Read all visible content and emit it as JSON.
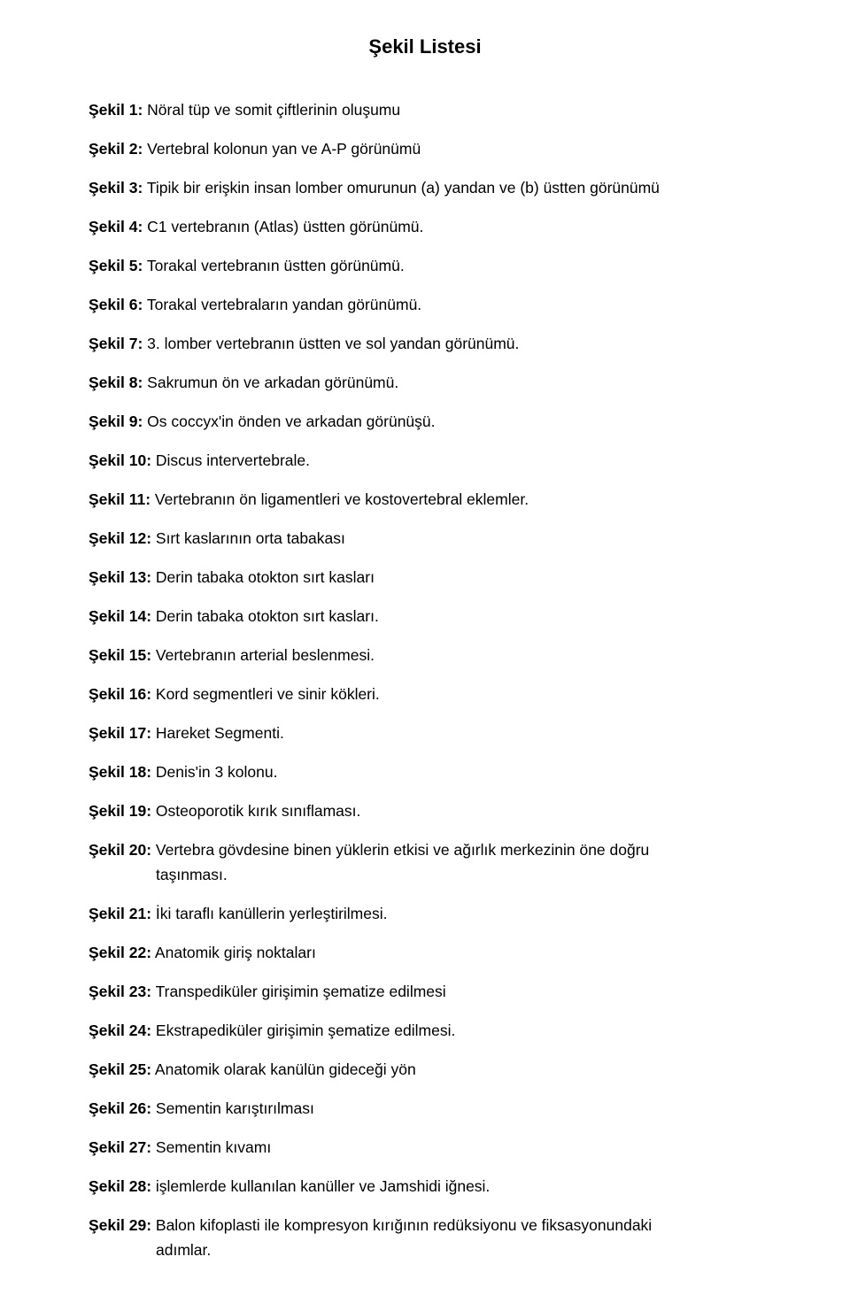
{
  "title": "Şekil Listesi",
  "entries": [
    {
      "label": "Şekil 1:",
      "text": " Nöral tüp ve somit çiftlerinin oluşumu"
    },
    {
      "label": "Şekil 2:",
      "text": " Vertebral kolonun yan ve A-P görünümü"
    },
    {
      "label": "Şekil 3:",
      "text": " Tipik bir erişkin insan lomber omurunun (a) yandan ve (b) üstten görünümü"
    },
    {
      "label": "Şekil 4:",
      "text": " C1 vertebranın (Atlas) üstten görünümü."
    },
    {
      "label": "Şekil 5:",
      "text": " Torakal vertebranın üstten görünümü."
    },
    {
      "label": "Şekil 6:",
      "text": " Torakal vertebraların yandan görünümü."
    },
    {
      "label": "Şekil 7:",
      "text": " 3. lomber vertebranın üstten ve sol yandan görünümü."
    },
    {
      "label": "Şekil 8:",
      "text": " Sakrumun ön ve arkadan görünümü."
    },
    {
      "label": "Şekil 9:",
      "text": " Os coccyx'in önden ve arkadan görünüşü."
    },
    {
      "label": "Şekil 10:",
      "text": " Discus intervertebrale."
    },
    {
      "label": "Şekil 11:",
      "text": " Vertebranın ön ligamentleri ve kostovertebral eklemler."
    },
    {
      "label": "Şekil 12:",
      "text": " Sırt kaslarının orta tabakası"
    },
    {
      "label": "Şekil 13:",
      "text": " Derin tabaka otokton sırt kasları"
    },
    {
      "label": "Şekil 14:",
      "text": " Derin tabaka otokton sırt kasları."
    },
    {
      "label": "Şekil 15:",
      "text": " Vertebranın arterial beslenmesi."
    },
    {
      "label": "Şekil 16:",
      "text": " Kord segmentleri ve sinir kökleri."
    },
    {
      "label": "Şekil 17:",
      "text": " Hareket Segmenti."
    },
    {
      "label": "Şekil 18:",
      "text": " Denis'in 3 kolonu."
    },
    {
      "label": "Şekil 19:",
      "text": " Osteoporotik kırık sınıflaması."
    },
    {
      "label": "Şekil 20:",
      "text": " Vertebra gövdesine binen yüklerin etkisi ve ağırlık merkezinin öne doğru",
      "cont": "taşınması."
    },
    {
      "label": "Şekil 21:",
      "text": " İki taraflı kanüllerin yerleştirilmesi."
    },
    {
      "label": "Şekil 22:",
      "text": " Anatomik giriş noktaları"
    },
    {
      "label": "Şekil 23:",
      "text": " Transpediküler girişimin şematize edilmesi"
    },
    {
      "label": "Şekil 24:",
      "text": " Ekstrapediküler girişimin şematize edilmesi."
    },
    {
      "label": "Şekil 25:",
      "text": " Anatomik olarak kanülün gideceği yön"
    },
    {
      "label": "Şekil 26:",
      "text": " Sementin karıştırılması"
    },
    {
      "label": "Şekil 27:",
      "text": " Sementin kıvamı"
    },
    {
      "label": "Şekil 28:",
      "text": " işlemlerde kullanılan kanüller ve Jamshidi iğnesi."
    },
    {
      "label": "Şekil 29:",
      "text": " Balon kifoplasti ile kompresyon kırığının redüksiyonu ve fiksasyonundaki",
      "cont": "adımlar."
    }
  ],
  "colors": {
    "background": "#ffffff",
    "text": "#000000"
  },
  "typography": {
    "title_fontsize": 22,
    "title_weight": "bold",
    "body_fontsize": 17.5,
    "line_height": 1.6,
    "font_family": "Arial"
  }
}
